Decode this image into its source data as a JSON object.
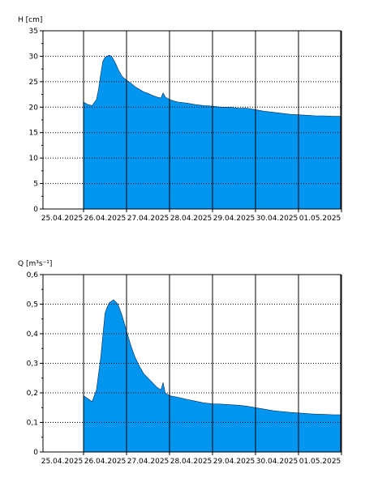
{
  "chart_data": [
    {
      "type": "area",
      "ylabel": "H [cm]",
      "ylim": [
        0,
        35
      ],
      "yticks": [
        "0",
        "5",
        "10",
        "15",
        "20",
        "25",
        "30",
        "35"
      ],
      "xticks": [
        "25.04.2025",
        "26.04.2025",
        "27.04.2025",
        "28.04.2025",
        "29.04.2025",
        "30.04.2025",
        "01.05.2025"
      ],
      "grid": "dotted-horizontal-solid-vertical",
      "fill_color": "#0096f0",
      "x": [
        0.0,
        0.1,
        0.2,
        0.3,
        0.35,
        0.4,
        0.45,
        0.5,
        0.55,
        0.6,
        0.65,
        0.7,
        0.75,
        0.8,
        0.9,
        1.0,
        1.1,
        1.2,
        1.3,
        1.4,
        1.5,
        1.6,
        1.7,
        1.8,
        1.85,
        1.9,
        2.0,
        2.1,
        2.2,
        2.4,
        2.6,
        2.8,
        3.0,
        3.2,
        3.4,
        3.6,
        3.8,
        4.0,
        4.2,
        4.4,
        4.6,
        4.8,
        5.0,
        5.2,
        5.4,
        5.6,
        5.8,
        6.0
      ],
      "y": [
        21.0,
        20.5,
        20.3,
        21.5,
        23.5,
        26.5,
        29.0,
        29.8,
        30.0,
        30.2,
        30.0,
        29.3,
        28.5,
        27.5,
        26.0,
        25.3,
        24.7,
        24.0,
        23.5,
        23.0,
        22.7,
        22.3,
        22.0,
        21.8,
        22.8,
        22.0,
        21.5,
        21.2,
        21.0,
        20.8,
        20.5,
        20.3,
        20.2,
        20.0,
        20.0,
        19.8,
        19.8,
        19.5,
        19.2,
        19.0,
        18.8,
        18.6,
        18.5,
        18.4,
        18.3,
        18.3,
        18.2,
        18.2
      ]
    },
    {
      "type": "area",
      "ylabel": "Q [m³s⁻¹]",
      "ylim": [
        0,
        0.6
      ],
      "yticks": [
        "0",
        "0,1",
        "0,2",
        "0,3",
        "0,4",
        "0,5",
        "0,6"
      ],
      "xticks": [
        "25.04.2025",
        "26.04.2025",
        "27.04.2025",
        "28.04.2025",
        "29.04.2025",
        "30.04.2025",
        "01.05.2025"
      ],
      "grid": "dotted-horizontal-solid-vertical",
      "fill_color": "#0096f0",
      "x": [
        0.0,
        0.1,
        0.2,
        0.3,
        0.4,
        0.5,
        0.55,
        0.6,
        0.65,
        0.7,
        0.8,
        0.9,
        1.0,
        1.1,
        1.2,
        1.3,
        1.4,
        1.5,
        1.6,
        1.7,
        1.8,
        1.85,
        1.9,
        2.0,
        2.2,
        2.4,
        2.6,
        2.8,
        3.0,
        3.2,
        3.4,
        3.6,
        3.8,
        4.0,
        4.2,
        4.4,
        4.6,
        4.8,
        5.0,
        5.2,
        5.4,
        5.6,
        5.8,
        6.0
      ],
      "y": [
        0.19,
        0.18,
        0.17,
        0.21,
        0.32,
        0.47,
        0.49,
        0.505,
        0.51,
        0.515,
        0.5,
        0.46,
        0.41,
        0.36,
        0.32,
        0.29,
        0.265,
        0.25,
        0.235,
        0.22,
        0.21,
        0.235,
        0.2,
        0.19,
        0.185,
        0.178,
        0.172,
        0.166,
        0.163,
        0.162,
        0.16,
        0.158,
        0.155,
        0.15,
        0.145,
        0.14,
        0.137,
        0.134,
        0.132,
        0.13,
        0.128,
        0.127,
        0.126,
        0.126
      ]
    }
  ]
}
